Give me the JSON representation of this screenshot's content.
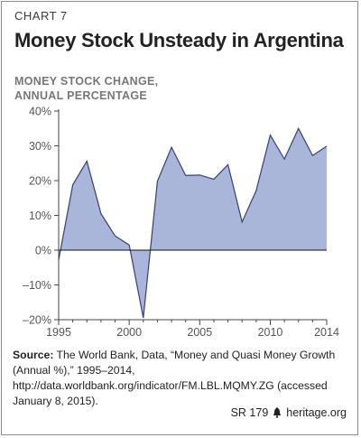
{
  "chart_number": "CHART 7",
  "chart_data": {
    "type": "area",
    "title": "Money Stock Unsteady in Argentina",
    "ylabel_lines": [
      "MONEY STOCK CHANGE,",
      "ANNUAL PERCENTAGE"
    ],
    "x": [
      1995,
      1996,
      1997,
      1998,
      1999,
      2000,
      2001,
      2002,
      2003,
      2004,
      2005,
      2006,
      2007,
      2008,
      2009,
      2010,
      2011,
      2012,
      2013,
      2014
    ],
    "values": [
      -2.8,
      18.8,
      25.6,
      10.5,
      4.1,
      1.5,
      -19.5,
      19.8,
      29.6,
      21.5,
      21.6,
      20.4,
      24.6,
      8.1,
      17.1,
      33.1,
      26.2,
      35.0,
      27.2,
      29.9
    ],
    "xlim": [
      1995,
      2014
    ],
    "ylim": [
      -20,
      40
    ],
    "yticks": [
      -20,
      -10,
      0,
      10,
      20,
      30,
      40
    ],
    "ytick_labels": [
      "–20%",
      "–10%",
      "0%",
      "10%",
      "20%",
      "30%",
      "40%"
    ],
    "xticks": [
      1995,
      2000,
      2005,
      2010,
      2014
    ],
    "xtick_labels": [
      "1995",
      "2000",
      "2005",
      "2010",
      "2014"
    ],
    "grid": false,
    "fill_color": "#a9b6d9",
    "line_color": "#34417a"
  },
  "source": {
    "label": "Source:",
    "text": " The World Bank, Data, “Money and Quasi Money Growth (Annual %),” 1995–2014, http://data.worldbank.org/indicator/FM.LBL.MQMY.ZG (accessed January 8, 2015)."
  },
  "footer": {
    "report": "SR 179",
    "site": "heritage.org",
    "icon": "liberty-bell-icon"
  }
}
